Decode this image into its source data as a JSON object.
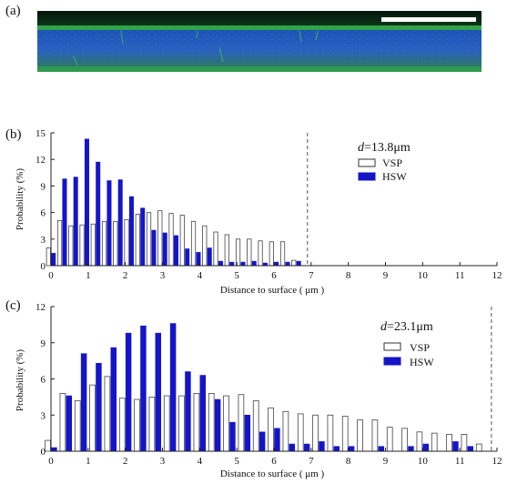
{
  "panels": {
    "a": "(a)",
    "b": "(b)",
    "c": "(c)"
  },
  "colors": {
    "vsp": "#ffffff",
    "hsw": "#1515c8",
    "stroke": "#333333"
  },
  "chart_data": [
    {
      "type": "bar",
      "title": "d=13.8μm",
      "title_italic_part": "d",
      "title_rest": "=13.8μm",
      "xlabel": "Distance to surface ( μm )",
      "ylabel": "Probability (%)",
      "xlim": [
        0,
        12
      ],
      "ylim": [
        0,
        15
      ],
      "xticks": [
        0,
        1,
        2,
        3,
        4,
        5,
        6,
        7,
        8,
        9,
        10,
        11,
        12
      ],
      "yticks": [
        0,
        3,
        6,
        9,
        12,
        15
      ],
      "legend_position": "top-right",
      "dashed_line_x": 6.9,
      "x": [
        0,
        0.3,
        0.6,
        0.9,
        1.2,
        1.5,
        1.8,
        2.1,
        2.4,
        2.7,
        3.0,
        3.3,
        3.6,
        3.9,
        4.2,
        4.5,
        4.8,
        5.1,
        5.4,
        5.7,
        6.0,
        6.3,
        6.6
      ],
      "series": [
        {
          "name": "VSP",
          "values": [
            2.0,
            5.1,
            4.5,
            4.6,
            4.7,
            5.0,
            5.0,
            5.2,
            5.8,
            6.0,
            6.2,
            5.9,
            5.7,
            5.0,
            4.5,
            3.8,
            3.5,
            3.0,
            3.0,
            2.8,
            2.7,
            2.7,
            0.6
          ]
        },
        {
          "name": "HSW",
          "values": [
            1.4,
            9.8,
            10.0,
            14.3,
            11.7,
            9.6,
            9.7,
            7.8,
            6.5,
            4.0,
            3.7,
            3.4,
            1.9,
            1.5,
            2.0,
            0.5,
            0.4,
            0.4,
            0.5,
            0.3,
            0.4,
            0.4,
            0.5
          ]
        }
      ]
    },
    {
      "type": "bar",
      "title": "d=23.1μm",
      "title_italic_part": "d",
      "title_rest": "=23.1μm",
      "xlabel": "Distance to surface ( μm )",
      "ylabel": "Probability (%)",
      "xlim": [
        0,
        12
      ],
      "ylim": [
        0,
        12
      ],
      "xticks": [
        0,
        1,
        2,
        3,
        4,
        5,
        6,
        7,
        8,
        9,
        10,
        11,
        12
      ],
      "yticks": [
        0,
        3,
        6,
        9,
        12
      ],
      "legend_position": "top-right",
      "dashed_line_x": 11.85,
      "x": [
        0,
        0.4,
        0.8,
        1.2,
        1.6,
        2.0,
        2.4,
        2.8,
        3.2,
        3.6,
        4.0,
        4.4,
        4.8,
        5.2,
        5.6,
        6.0,
        6.4,
        6.8,
        7.2,
        7.6,
        8.0,
        8.4,
        8.8,
        9.2,
        9.6,
        10.0,
        10.4,
        10.8,
        11.2,
        11.6
      ],
      "series": [
        {
          "name": "VSP",
          "values": [
            0.9,
            4.8,
            4.2,
            5.5,
            6.2,
            4.4,
            4.3,
            4.5,
            4.6,
            4.6,
            4.8,
            4.8,
            4.6,
            4.7,
            4.2,
            3.6,
            3.3,
            3.1,
            3.0,
            3.0,
            2.9,
            2.6,
            2.6,
            2.0,
            1.9,
            1.6,
            1.5,
            1.4,
            1.4,
            0.6
          ]
        },
        {
          "name": "HSW",
          "values": [
            0.3,
            4.6,
            8.1,
            7.3,
            8.6,
            9.8,
            10.4,
            9.8,
            10.6,
            6.6,
            6.3,
            4.3,
            2.4,
            3.0,
            1.6,
            1.9,
            0.6,
            0.6,
            0.8,
            0.4,
            0.4,
            0.0,
            0.4,
            0.0,
            0.4,
            0.6,
            0.0,
            0.8,
            0.4,
            0.0
          ]
        }
      ]
    }
  ]
}
